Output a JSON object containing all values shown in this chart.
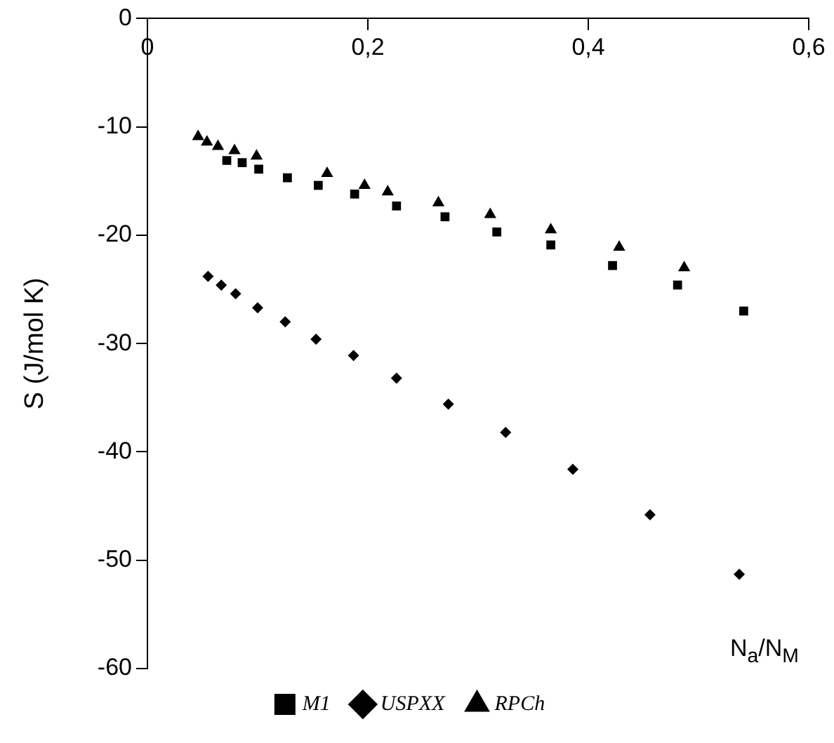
{
  "chart_data": {
    "type": "scatter",
    "xlabel": "N$_{a}$/N$_{M}$",
    "ylabel": "S (J/mol K)",
    "xlim": [
      0,
      0.6
    ],
    "xticks": [
      0,
      {
        "value": 0.2,
        "label": "0,2"
      },
      {
        "value": 0.4,
        "label": "0,4"
      },
      {
        "value": 0.6,
        "label": "0,6"
      }
    ],
    "ylim": [
      -60,
      0
    ],
    "yticks": [
      -60,
      -50,
      -40,
      -30,
      -20,
      -10,
      0
    ],
    "grid": false,
    "legend": "bottom",
    "series": [
      {
        "name": "M1",
        "color": "#000000",
        "marker": "square",
        "x": [
          0.072,
          0.086,
          0.101,
          0.127,
          0.155,
          0.188,
          0.226,
          0.27,
          0.317,
          0.366,
          0.422,
          0.481,
          0.541
        ],
        "values": [
          -13.1,
          -13.3,
          -13.9,
          -14.7,
          -15.4,
          -16.2,
          -17.3,
          -18.3,
          -19.7,
          -20.9,
          -22.8,
          -24.6,
          -27.0
        ]
      },
      {
        "name": "USPXX",
        "color": "#000000",
        "marker": "diamond",
        "x": [
          0.055,
          0.067,
          0.08,
          0.1,
          0.125,
          0.153,
          0.187,
          0.226,
          0.273,
          0.325,
          0.386,
          0.456,
          0.537
        ],
        "values": [
          -23.8,
          -24.6,
          -25.4,
          -26.7,
          -28.0,
          -29.6,
          -31.1,
          -33.2,
          -35.6,
          -38.2,
          -41.6,
          -45.8,
          -51.3
        ]
      },
      {
        "name": "RPCh",
        "color": "#000000",
        "marker": "triangle",
        "x": [
          0.046,
          0.054,
          0.064,
          0.079,
          0.099,
          0.163,
          0.197,
          0.218,
          0.264,
          0.311,
          0.366,
          0.428,
          0.487
        ],
        "values": [
          -10.9,
          -11.4,
          -11.8,
          -12.2,
          -12.7,
          -14.3,
          -15.4,
          -16.0,
          -17.0,
          -18.1,
          -19.5,
          -21.1,
          -23.0
        ]
      }
    ]
  }
}
